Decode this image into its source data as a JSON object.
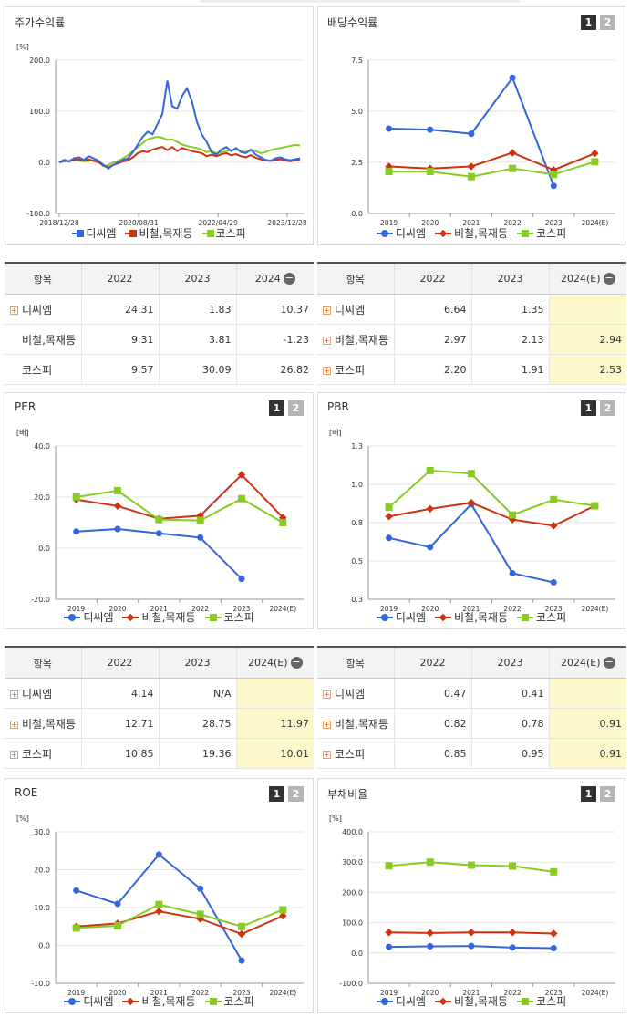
{
  "colors": {
    "dcm": "#3366dd",
    "steel": "#cc3311",
    "kospi": "#88cc22"
  },
  "legend": {
    "dcm": "디씨엠",
    "steel": "비철,목재등",
    "kospi": "코스피"
  },
  "pager": {
    "p1": "1",
    "p2": "2"
  },
  "icons": {
    "expand": "plus-icon",
    "collapse": "minus-icon"
  },
  "panels": {
    "stock_return": {
      "title": "주가수익률"
    },
    "dividend": {
      "title": "배당수익률"
    },
    "per": {
      "title": "PER"
    },
    "pbr": {
      "title": "PBR"
    },
    "roe": {
      "title": "ROE"
    },
    "debt": {
      "title": "부채비율"
    }
  },
  "tables": {
    "stock_return": {
      "headers": [
        "항목",
        "2022",
        "2023",
        "2024"
      ],
      "rows": [
        {
          "label": "디씨엠",
          "expand": true,
          "v": [
            "24.31",
            "1.83",
            "10.37"
          ]
        },
        {
          "label": "비철,목재등",
          "expand": false,
          "v": [
            "9.31",
            "3.81",
            "-1.23"
          ]
        },
        {
          "label": "코스피",
          "expand": false,
          "v": [
            "9.57",
            "30.09",
            "26.82"
          ]
        }
      ]
    },
    "dividend": {
      "headers": [
        "항목",
        "2022",
        "2023",
        "2024(E)"
      ],
      "rows": [
        {
          "label": "디씨엠",
          "expand": true,
          "v": [
            "6.64",
            "1.35",
            ""
          ]
        },
        {
          "label": "비철,목재등",
          "expand": true,
          "v": [
            "2.97",
            "2.13",
            "2.94"
          ]
        },
        {
          "label": "코스피",
          "expand": true,
          "v": [
            "2.20",
            "1.91",
            "2.53"
          ]
        }
      ]
    },
    "per": {
      "headers": [
        "항목",
        "2022",
        "2023",
        "2024(E)"
      ],
      "rows": [
        {
          "label": "디씨엠",
          "expand": true,
          "v": [
            "4.14",
            "N/A",
            ""
          ]
        },
        {
          "label": "비철,목재등",
          "expand": true,
          "v": [
            "12.71",
            "28.75",
            "11.97"
          ]
        },
        {
          "label": "코스피",
          "expand": true,
          "v": [
            "10.85",
            "19.36",
            "10.01"
          ]
        }
      ]
    },
    "pbr": {
      "headers": [
        "항목",
        "2022",
        "2023",
        "2024(E)"
      ],
      "rows": [
        {
          "label": "디씨엠",
          "expand": true,
          "v": [
            "0.47",
            "0.41",
            ""
          ]
        },
        {
          "label": "비철,목재등",
          "expand": true,
          "v": [
            "0.82",
            "0.78",
            "0.91"
          ]
        },
        {
          "label": "코스피",
          "expand": true,
          "v": [
            "0.85",
            "0.95",
            "0.91"
          ]
        }
      ]
    }
  },
  "chart_data": [
    {
      "id": "stock_return",
      "type": "line",
      "unit": "[%]",
      "ylim": [
        -100,
        200
      ],
      "yticks": [
        "200.0",
        "100.0",
        "0.0",
        "-100.0"
      ],
      "ytick_values": [
        200,
        100,
        0,
        -100
      ],
      "xticks": [
        "2018/12/28",
        "2020/08/31",
        "2022/04/29",
        "2023/12/28"
      ],
      "series": [
        {
          "name": "디씨엠",
          "key": "dcm",
          "values": [
            0,
            5,
            2,
            8,
            10,
            5,
            12,
            8,
            3,
            -5,
            -12,
            -5,
            0,
            5,
            8,
            20,
            35,
            50,
            60,
            55,
            75,
            95,
            160,
            110,
            105,
            130,
            145,
            120,
            80,
            55,
            40,
            20,
            15,
            25,
            30,
            22,
            28,
            20,
            18,
            25,
            15,
            10,
            5,
            3,
            8,
            10,
            6,
            4,
            6,
            8
          ]
        },
        {
          "name": "비철,목재등",
          "key": "steel",
          "values": [
            0,
            3,
            2,
            5,
            6,
            4,
            6,
            3,
            0,
            -6,
            -10,
            -5,
            -2,
            2,
            4,
            10,
            18,
            22,
            20,
            25,
            28,
            30,
            24,
            30,
            22,
            28,
            25,
            22,
            20,
            18,
            12,
            15,
            12,
            16,
            18,
            14,
            16,
            12,
            10,
            14,
            9,
            6,
            4,
            3,
            5,
            6,
            4,
            2,
            4,
            6
          ]
        },
        {
          "name": "코스피",
          "key": "kospi",
          "values": [
            0,
            2,
            3,
            6,
            4,
            2,
            3,
            4,
            2,
            -8,
            -5,
            0,
            3,
            8,
            14,
            22,
            30,
            38,
            45,
            48,
            50,
            48,
            44,
            45,
            40,
            35,
            32,
            30,
            28,
            25,
            20,
            22,
            18,
            20,
            22,
            24,
            26,
            22,
            20,
            24,
            22,
            18,
            20,
            24,
            26,
            28,
            30,
            32,
            34,
            33
          ]
        }
      ]
    },
    {
      "id": "dividend",
      "type": "line",
      "unit": "",
      "ylim": [
        0,
        7.5
      ],
      "yticks": [
        "7.5",
        "5.0",
        "2.5",
        "0.0"
      ],
      "ytick_values": [
        7.5,
        5.0,
        2.5,
        0.0
      ],
      "categories": [
        "2019",
        "2020",
        "2021",
        "2022",
        "2023",
        "2024(E)"
      ],
      "series": [
        {
          "name": "디씨엠",
          "key": "dcm",
          "values": [
            4.15,
            4.1,
            3.9,
            6.64,
            1.35,
            null
          ]
        },
        {
          "name": "비철,목재등",
          "key": "steel",
          "values": [
            2.3,
            2.2,
            2.3,
            2.97,
            2.13,
            2.94
          ]
        },
        {
          "name": "코스피",
          "key": "kospi",
          "values": [
            2.05,
            2.05,
            1.8,
            2.2,
            1.91,
            2.53
          ]
        }
      ]
    },
    {
      "id": "per",
      "type": "line",
      "unit": "[배]",
      "ylim": [
        -20,
        40
      ],
      "yticks": [
        "40.0",
        "20.0",
        "0.0",
        "-20.0"
      ],
      "ytick_values": [
        40,
        20,
        0,
        -20
      ],
      "categories": [
        "2019",
        "2020",
        "2021",
        "2022",
        "2023",
        "2024(E)"
      ],
      "series": [
        {
          "name": "디씨엠",
          "key": "dcm",
          "values": [
            6.5,
            7.5,
            5.8,
            4.14,
            -12,
            null
          ]
        },
        {
          "name": "비철,목재등",
          "key": "steel",
          "values": [
            19,
            16.5,
            11.5,
            12.71,
            28.75,
            11.97
          ]
        },
        {
          "name": "코스피",
          "key": "kospi",
          "values": [
            20,
            22.5,
            11.2,
            10.85,
            19.36,
            10.01
          ]
        }
      ]
    },
    {
      "id": "pbr",
      "type": "line",
      "unit": "[배]",
      "ylim": [
        0.3,
        1.3
      ],
      "yticks": [
        "1.3",
        "1.0",
        "0.8",
        "0.5",
        "0.3"
      ],
      "ytick_values": [
        1.3,
        1.05,
        0.8,
        0.55,
        0.3
      ],
      "categories": [
        "2019",
        "2020",
        "2021",
        "2022",
        "2023",
        "2024(E)"
      ],
      "series": [
        {
          "name": "디씨엠",
          "key": "dcm",
          "values": [
            0.7,
            0.64,
            0.92,
            0.47,
            0.41,
            null
          ]
        },
        {
          "name": "비철,목재등",
          "key": "steel",
          "values": [
            0.84,
            0.89,
            0.93,
            0.82,
            0.78,
            0.91
          ]
        },
        {
          "name": "코스피",
          "key": "kospi",
          "values": [
            0.9,
            1.14,
            1.12,
            0.85,
            0.95,
            0.91
          ]
        }
      ]
    },
    {
      "id": "roe",
      "type": "line",
      "unit": "[%]",
      "ylim": [
        -10,
        30
      ],
      "yticks": [
        "30.0",
        "20.0",
        "10.0",
        "0.0",
        "-10.0"
      ],
      "ytick_values": [
        30,
        20,
        10,
        0,
        -10
      ],
      "categories": [
        "2019",
        "2020",
        "2021",
        "2022",
        "2023",
        "2024(E)"
      ],
      "series": [
        {
          "name": "디씨엠",
          "key": "dcm",
          "values": [
            14.5,
            11,
            24,
            15,
            -4,
            null
          ]
        },
        {
          "name": "비철,목재등",
          "key": "steel",
          "values": [
            5,
            5.8,
            9,
            7,
            3,
            7.8
          ]
        },
        {
          "name": "코스피",
          "key": "kospi",
          "values": [
            4.6,
            5.2,
            10.8,
            8.2,
            5,
            9.4
          ]
        }
      ]
    },
    {
      "id": "debt",
      "type": "line",
      "unit": "[%]",
      "ylim": [
        -100,
        400
      ],
      "yticks": [
        "400.0",
        "300.0",
        "200.0",
        "100.0",
        "0.0",
        "-100.0"
      ],
      "ytick_values": [
        400,
        300,
        200,
        100,
        0,
        -100
      ],
      "categories": [
        "2019",
        "2020",
        "2021",
        "2022",
        "2023",
        "2024(E)"
      ],
      "series": [
        {
          "name": "디씨엠",
          "key": "dcm",
          "values": [
            20,
            22,
            23,
            18,
            16,
            null
          ]
        },
        {
          "name": "비철,목재등",
          "key": "steel",
          "values": [
            68,
            66,
            68,
            68,
            64,
            null
          ]
        },
        {
          "name": "코스피",
          "key": "kospi",
          "values": [
            288,
            300,
            290,
            287,
            268,
            null
          ]
        }
      ]
    }
  ]
}
